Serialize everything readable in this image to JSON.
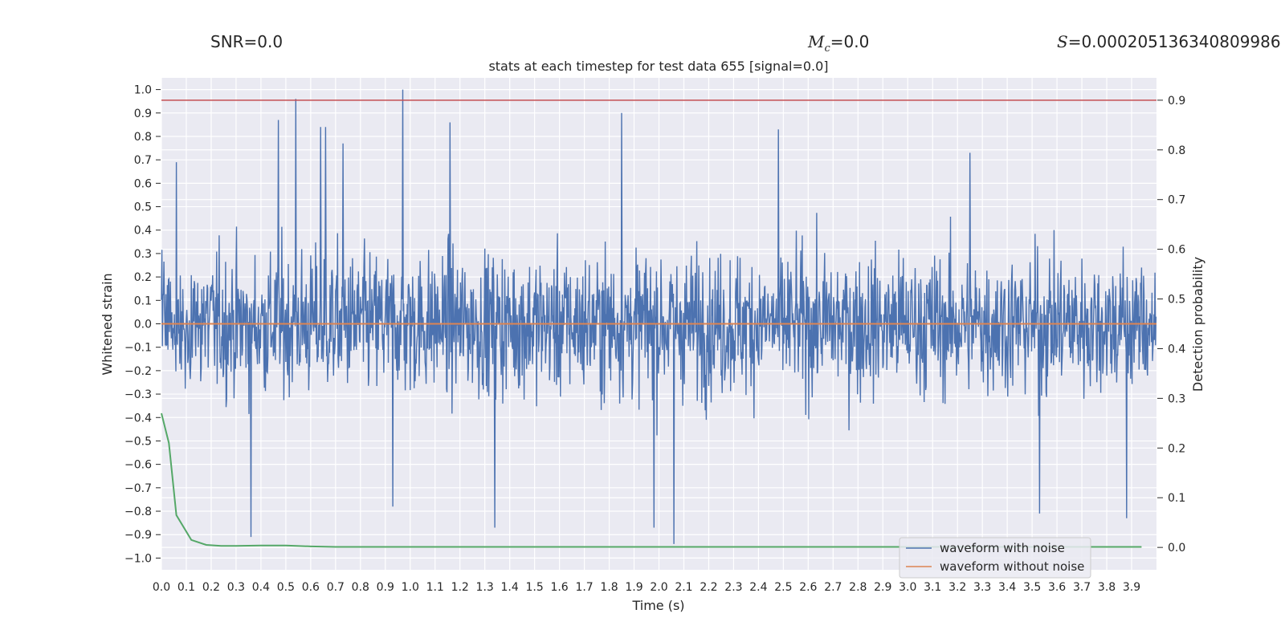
{
  "header": {
    "snr": "SNR=0.0",
    "mc_symbol": "M",
    "mc_sub": "c",
    "mc_value": "=0.0",
    "s_symbol": "S",
    "s_value": "=0.000205136340809986"
  },
  "chart_data": {
    "type": "line",
    "title": "stats at each timestep for test data 655 [signal=0.0]",
    "xlabel": "Time (s)",
    "ylabel": "Whitened strain",
    "y2label": "Detection probability",
    "xlim": [
      0.0,
      4.0
    ],
    "ylim": [
      -1.05,
      1.05
    ],
    "y2lim": [
      -0.045,
      0.945
    ],
    "x_ticks": [
      "0.0",
      "0.1",
      "0.2",
      "0.3",
      "0.4",
      "0.5",
      "0.6",
      "0.7",
      "0.8",
      "0.9",
      "1.0",
      "1.1",
      "1.2",
      "1.3",
      "1.4",
      "1.5",
      "1.6",
      "1.7",
      "1.8",
      "1.9",
      "2.0",
      "2.1",
      "2.2",
      "2.3",
      "2.4",
      "2.5",
      "2.6",
      "2.7",
      "2.8",
      "2.9",
      "3.0",
      "3.1",
      "3.2",
      "3.3",
      "3.4",
      "3.5",
      "3.6",
      "3.7",
      "3.8",
      "3.9"
    ],
    "y_ticks": [
      "1.0",
      "0.9",
      "0.8",
      "0.7",
      "0.6",
      "0.5",
      "0.4",
      "0.3",
      "0.2",
      "0.1",
      "0.0",
      "−0.1",
      "−0.2",
      "−0.3",
      "−0.4",
      "−0.5",
      "−0.6",
      "−0.7",
      "−0.8",
      "−0.9",
      "−1.0"
    ],
    "y2_ticks": [
      "0.9",
      "0.8",
      "0.7",
      "0.6",
      "0.5",
      "0.4",
      "0.3",
      "0.2",
      "0.1",
      "0.0"
    ],
    "colors": {
      "noise": "#4c72b0",
      "clean": "#dd8452",
      "prob": "#55a868",
      "threshold": "#c44e52",
      "plot_bg": "#eaeaf2",
      "grid": "#ffffff"
    },
    "series": [
      {
        "name": "waveform with noise",
        "description_type": "noise",
        "sample_count": 2000,
        "typical_amplitude": 0.3,
        "peaks": [
          {
            "x": 0.06,
            "y": 0.69
          },
          {
            "x": 0.47,
            "y": 0.87
          },
          {
            "x": 0.54,
            "y": 0.96
          },
          {
            "x": 0.64,
            "y": 0.84
          },
          {
            "x": 0.66,
            "y": 0.84
          },
          {
            "x": 0.73,
            "y": 0.77
          },
          {
            "x": 0.97,
            "y": 1.0
          },
          {
            "x": 1.16,
            "y": 0.86
          },
          {
            "x": 1.85,
            "y": 0.9
          },
          {
            "x": 2.48,
            "y": 0.83
          },
          {
            "x": 3.25,
            "y": 0.73
          },
          {
            "x": 0.36,
            "y": -0.91
          },
          {
            "x": 1.34,
            "y": -0.87
          },
          {
            "x": 1.98,
            "y": -0.87
          },
          {
            "x": 2.06,
            "y": -0.94
          },
          {
            "x": 3.53,
            "y": -0.81
          },
          {
            "x": 3.88,
            "y": -0.83
          },
          {
            "x": 0.93,
            "y": -0.78
          }
        ]
      },
      {
        "name": "waveform without noise",
        "x": [
          0.0,
          4.0
        ],
        "y": [
          0.0,
          0.0
        ]
      },
      {
        "name": "detection probability",
        "axis": "right",
        "x": [
          0.0,
          0.03,
          0.06,
          0.12,
          0.18,
          0.24,
          0.3,
          0.4,
          0.5,
          0.6,
          0.7,
          1.0,
          2.0,
          3.0,
          3.94
        ],
        "y": [
          0.27,
          0.21,
          0.065,
          0.015,
          0.005,
          0.003,
          0.003,
          0.004,
          0.004,
          0.002,
          0.001,
          0.001,
          0.001,
          0.001,
          0.001
        ]
      },
      {
        "name": "threshold",
        "axis": "right",
        "x": [
          0.0,
          4.0
        ],
        "y": [
          0.9,
          0.9
        ]
      }
    ],
    "legend": {
      "position": "lower-right",
      "entries": [
        "waveform with noise",
        "waveform without noise"
      ]
    }
  }
}
